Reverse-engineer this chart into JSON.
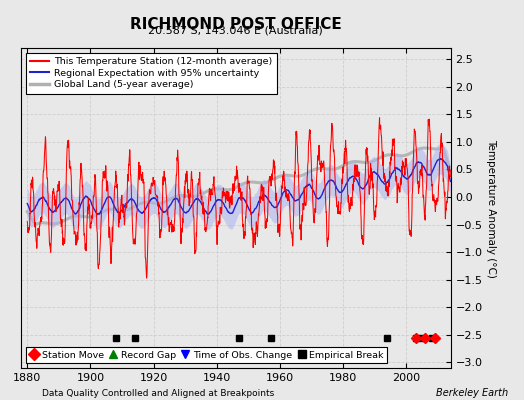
{
  "title": "RICHMOND POST OFFICE",
  "subtitle": "20.587 S, 143.046 E (Australia)",
  "ylabel": "Temperature Anomaly (°C)",
  "xlabel_left": "Data Quality Controlled and Aligned at Breakpoints",
  "xlabel_right": "Berkeley Earth",
  "ylim": [
    -3.1,
    2.7
  ],
  "yticks": [
    -3,
    -2.5,
    -2,
    -1.5,
    -1,
    -0.5,
    0,
    0.5,
    1,
    1.5,
    2,
    2.5
  ],
  "xlim": [
    1878,
    2014
  ],
  "xticks": [
    1880,
    1900,
    1920,
    1940,
    1960,
    1980,
    2000
  ],
  "year_start": 1880,
  "year_end": 2013,
  "color_station": "#ff0000",
  "color_regional_line": "#2222cc",
  "color_regional_fill": "#aab4ee",
  "color_global": "#b0b0b0",
  "bg_color": "#e8e8e8",
  "plot_bg": "#e8e8e8",
  "empirical_breaks": [
    1908,
    1914,
    1947,
    1957,
    1994,
    2003,
    2005,
    2008
  ],
  "station_moves": [
    2003,
    2006,
    2009
  ],
  "record_gaps": [],
  "obs_changes": [],
  "marker_y": -2.55,
  "legend_items": [
    {
      "label": "This Temperature Station (12-month average)",
      "color": "#ff0000",
      "lw": 1.5
    },
    {
      "label": "Regional Expectation with 95% uncertainty",
      "color": "#2222cc",
      "lw": 1.5
    },
    {
      "label": "Global Land (5-year average)",
      "color": "#b0b0b0",
      "lw": 2.0
    }
  ]
}
